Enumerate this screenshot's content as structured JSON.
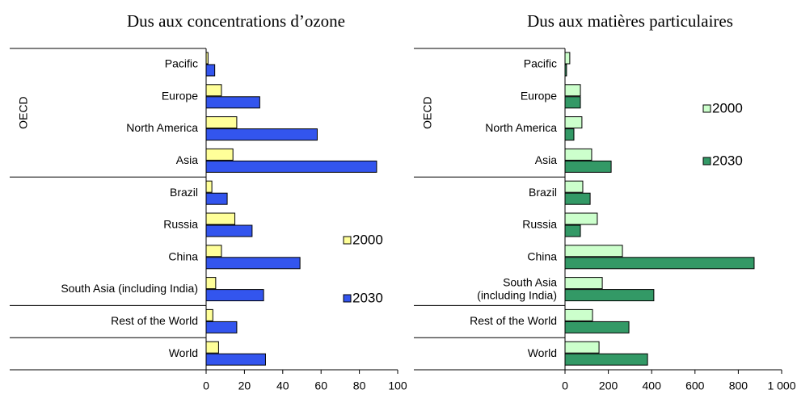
{
  "chart_data": [
    {
      "type": "bar",
      "title": "Dus aux concentrations d’ozone",
      "group_label": "OECD",
      "categories": [
        "Pacific",
        "Europe",
        "North America",
        "Asia",
        "Brazil",
        "Russia",
        "China",
        "South Asia (including India)",
        "Rest of the World",
        "World"
      ],
      "series": [
        {
          "name": "2000",
          "color": "#ffff99",
          "values": [
            1,
            8,
            16,
            14,
            3,
            15,
            8,
            5,
            3.5,
            6.5
          ]
        },
        {
          "name": "2030",
          "color": "#3355ee",
          "values": [
            4.5,
            28,
            58,
            89,
            11,
            24,
            49,
            30,
            16,
            31
          ]
        }
      ],
      "xlim": [
        0,
        100
      ],
      "xticks": [
        0,
        20,
        40,
        60,
        80,
        100
      ],
      "legend": "right"
    },
    {
      "type": "bar",
      "title": "Dus aux matières particulaires",
      "group_label": "OECD",
      "categories": [
        "Pacific",
        "Europe",
        "North America",
        "Asia",
        "Brazil",
        "Russia",
        "China",
        "South Asia\n(including India)",
        "Rest of the World",
        "World"
      ],
      "series": [
        {
          "name": "2000",
          "color": "#ccffcc",
          "values": [
            22,
            71,
            78,
            123,
            82,
            149,
            265,
            172,
            127,
            157
          ]
        },
        {
          "name": "2030",
          "color": "#339966",
          "values": [
            7,
            71,
            41,
            213,
            116,
            71,
            873,
            410,
            295,
            381
          ]
        }
      ],
      "xlim": [
        0,
        1000
      ],
      "xticks": [
        0,
        200,
        400,
        600,
        800,
        {
          "value": 1000,
          "label": "1 000"
        }
      ],
      "legend": "upper right"
    }
  ]
}
